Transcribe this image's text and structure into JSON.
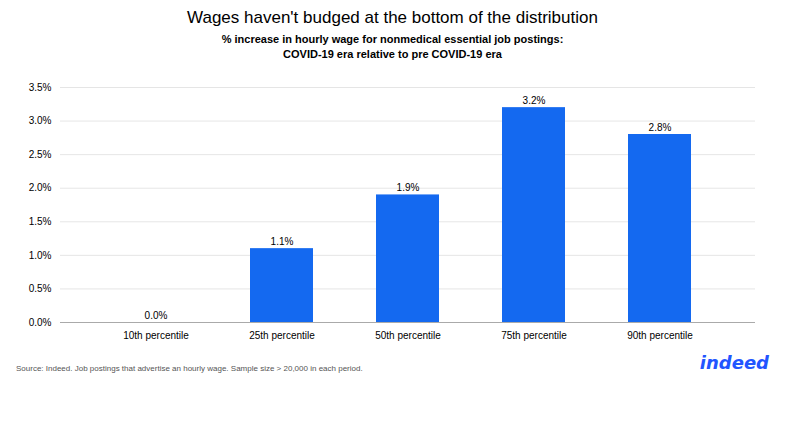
{
  "chart_data": {
    "type": "bar",
    "title": "Wages haven't budged at the bottom of the distribution",
    "subtitle": [
      "% increase in hourly wage for nonmedical essential job postings:",
      "COVID-19 era relative to pre COVID-19 era"
    ],
    "categories": [
      "10th percentile",
      "25th percentile",
      "50th percentile",
      "75th percentile",
      "90th percentile"
    ],
    "values": [
      0.0,
      1.1,
      1.9,
      3.2,
      2.8
    ],
    "value_labels": [
      "0.0%",
      "1.1%",
      "1.9%",
      "3.2%",
      "2.8%"
    ],
    "data_labels": true,
    "color": "#1469F0",
    "ylim": [
      0,
      3.5
    ],
    "yticks": [
      {
        "value": 0.0,
        "label": "0.0%"
      },
      {
        "value": 0.5,
        "label": "0.5%"
      },
      {
        "value": 1.0,
        "label": "1.0%"
      },
      {
        "value": 1.5,
        "label": "1.5%"
      },
      {
        "value": 2.0,
        "label": "2.0%"
      },
      {
        "value": 2.5,
        "label": "2.5%"
      },
      {
        "value": 3.0,
        "label": "3.0%"
      },
      {
        "value": 3.5,
        "label": "3.5%"
      }
    ],
    "grid": true,
    "caption": "Source: Indeed. Job postings that advertise an hourly wage. Sample size > 20,000 in each period.",
    "annotations": [
      {
        "text": "indeed",
        "color": "#2255FF"
      }
    ]
  }
}
